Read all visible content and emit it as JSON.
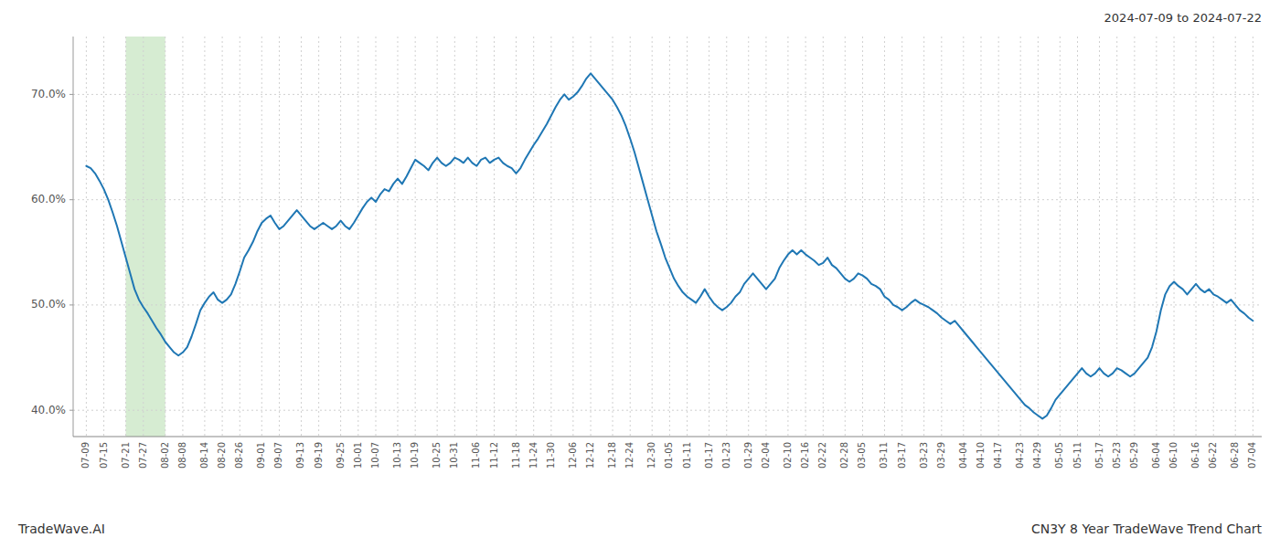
{
  "chart_data": {
    "type": "line",
    "title": "CN3Y 8 Year TradeWave Trend Chart",
    "subtitle": "2024-07-09 to 2024-07-22",
    "annotations": [
      "TradeWave.AI"
    ],
    "color": "#1f77b4",
    "grid": true,
    "ylim": [
      37.5,
      75.5
    ],
    "yticks": [
      {
        "value": 40.0,
        "label": "40.0%"
      },
      {
        "value": 50.0,
        "label": "50.0%"
      },
      {
        "value": 60.0,
        "label": "60.0%"
      },
      {
        "value": 70.0,
        "label": "70.0%"
      }
    ],
    "highlight": {
      "x_start": 9,
      "x_end": 18,
      "color": "#d6ecd2"
    },
    "categories": [
      "07-09",
      null,
      null,
      null,
      "07-15",
      null,
      null,
      null,
      null,
      "07-21",
      null,
      null,
      null,
      "07-27",
      null,
      null,
      null,
      null,
      "08-02",
      null,
      null,
      null,
      "08-08",
      null,
      null,
      null,
      null,
      "08-14",
      null,
      null,
      null,
      "08-20",
      null,
      null,
      null,
      "08-26",
      null,
      null,
      null,
      null,
      "09-01",
      null,
      null,
      null,
      "09-07",
      null,
      null,
      null,
      null,
      "09-13",
      null,
      null,
      null,
      "09-19",
      null,
      null,
      null,
      null,
      "09-25",
      null,
      null,
      null,
      "10-01",
      null,
      null,
      null,
      "10-07",
      null,
      null,
      null,
      null,
      "10-13",
      null,
      null,
      null,
      "10-19",
      null,
      null,
      null,
      null,
      "10-25",
      null,
      null,
      null,
      "10-31",
      null,
      null,
      null,
      null,
      "11-06",
      null,
      null,
      null,
      "11-12",
      null,
      null,
      null,
      null,
      "11-18",
      null,
      null,
      null,
      "11-24",
      null,
      null,
      null,
      "11-30",
      null,
      null,
      null,
      null,
      "12-06",
      null,
      null,
      null,
      "12-12",
      null,
      null,
      null,
      null,
      "12-18",
      null,
      null,
      null,
      "12-24",
      null,
      null,
      null,
      null,
      "12-30",
      null,
      null,
      null,
      "01-05",
      null,
      null,
      null,
      "01-11",
      null,
      null,
      null,
      null,
      "01-17",
      null,
      null,
      null,
      "01-23",
      null,
      null,
      null,
      null,
      "01-29",
      null,
      null,
      null,
      "02-04",
      null,
      null,
      null,
      null,
      "02-10",
      null,
      null,
      null,
      "02-16",
      null,
      null,
      null,
      "02-22",
      null,
      null,
      null,
      null,
      "02-28",
      null,
      null,
      null,
      "03-05",
      null,
      null,
      null,
      null,
      "03-11",
      null,
      null,
      null,
      "03-17",
      null,
      null,
      null,
      null,
      "03-23",
      null,
      null,
      null,
      "03-29",
      null,
      null,
      null,
      null,
      "04-04",
      null,
      null,
      null,
      "04-10",
      null,
      null,
      null,
      "04-17",
      null,
      null,
      null,
      null,
      "04-23",
      null,
      null,
      null,
      "04-29",
      null,
      null,
      null,
      null,
      "05-05",
      null,
      null,
      null,
      "05-11",
      null,
      null,
      null,
      null,
      "05-17",
      null,
      null,
      null,
      "05-23",
      null,
      null,
      null,
      "05-29",
      null,
      null,
      null,
      null,
      "06-04",
      null,
      null,
      null,
      "06-10",
      null,
      null,
      null,
      null,
      "06-16",
      null,
      null,
      null,
      "06-22",
      null,
      null,
      null,
      null,
      "06-28",
      null,
      null,
      null,
      "07-04"
    ],
    "values": [
      63.2,
      63.0,
      62.5,
      61.8,
      61.0,
      60.0,
      58.8,
      57.5,
      56.0,
      54.5,
      53.0,
      51.5,
      50.5,
      49.8,
      49.2,
      48.5,
      47.8,
      47.2,
      46.5,
      46.0,
      45.5,
      45.2,
      45.5,
      46.0,
      47.0,
      48.2,
      49.5,
      50.2,
      50.8,
      51.2,
      50.5,
      50.2,
      50.5,
      51.0,
      52.0,
      53.2,
      54.5,
      55.2,
      56.0,
      57.0,
      57.8,
      58.2,
      58.5,
      57.8,
      57.2,
      57.5,
      58.0,
      58.5,
      59.0,
      58.5,
      58.0,
      57.5,
      57.2,
      57.5,
      57.8,
      57.5,
      57.2,
      57.5,
      58.0,
      57.5,
      57.2,
      57.8,
      58.5,
      59.2,
      59.8,
      60.2,
      59.8,
      60.5,
      61.0,
      60.8,
      61.5,
      62.0,
      61.5,
      62.2,
      63.0,
      63.8,
      63.5,
      63.2,
      62.8,
      63.5,
      64.0,
      63.5,
      63.2,
      63.5,
      64.0,
      63.8,
      63.5,
      64.0,
      63.5,
      63.2,
      63.8,
      64.0,
      63.5,
      63.8,
      64.0,
      63.5,
      63.2,
      63.0,
      62.5,
      63.0,
      63.8,
      64.5,
      65.2,
      65.8,
      66.5,
      67.2,
      68.0,
      68.8,
      69.5,
      70.0,
      69.5,
      69.8,
      70.2,
      70.8,
      71.5,
      72.0,
      71.5,
      71.0,
      70.5,
      70.0,
      69.5,
      68.8,
      68.0,
      67.0,
      65.8,
      64.5,
      63.0,
      61.5,
      60.0,
      58.5,
      57.0,
      55.8,
      54.5,
      53.5,
      52.5,
      51.8,
      51.2,
      50.8,
      50.5,
      50.2,
      50.8,
      51.5,
      50.8,
      50.2,
      49.8,
      49.5,
      49.8,
      50.2,
      50.8,
      51.2,
      52.0,
      52.5,
      53.0,
      52.5,
      52.0,
      51.5,
      52.0,
      52.5,
      53.5,
      54.2,
      54.8,
      55.2,
      54.8,
      55.2,
      54.8,
      54.5,
      54.2,
      53.8,
      54.0,
      54.5,
      53.8,
      53.5,
      53.0,
      52.5,
      52.2,
      52.5,
      53.0,
      52.8,
      52.5,
      52.0,
      51.8,
      51.5,
      50.8,
      50.5,
      50.0,
      49.8,
      49.5,
      49.8,
      50.2,
      50.5,
      50.2,
      50.0,
      49.8,
      49.5,
      49.2,
      48.8,
      48.5,
      48.2,
      48.5,
      48.0,
      47.5,
      47.0,
      46.5,
      46.0,
      45.5,
      45.0,
      44.5,
      44.0,
      43.5,
      43.0,
      42.5,
      42.0,
      41.5,
      41.0,
      40.5,
      40.2,
      39.8,
      39.5,
      39.2,
      39.5,
      40.2,
      41.0,
      41.5,
      42.0,
      42.5,
      43.0,
      43.5,
      44.0,
      43.5,
      43.2,
      43.5,
      44.0,
      43.5,
      43.2,
      43.5,
      44.0,
      43.8,
      43.5,
      43.2,
      43.5,
      44.0,
      44.5,
      45.0,
      46.0,
      47.5,
      49.5,
      51.0,
      51.8,
      52.2,
      51.8,
      51.5,
      51.0,
      51.5,
      52.0,
      51.5,
      51.2,
      51.5,
      51.0,
      50.8,
      50.5,
      50.2,
      50.5,
      50.0,
      49.5,
      49.2,
      48.8,
      48.5
    ]
  }
}
